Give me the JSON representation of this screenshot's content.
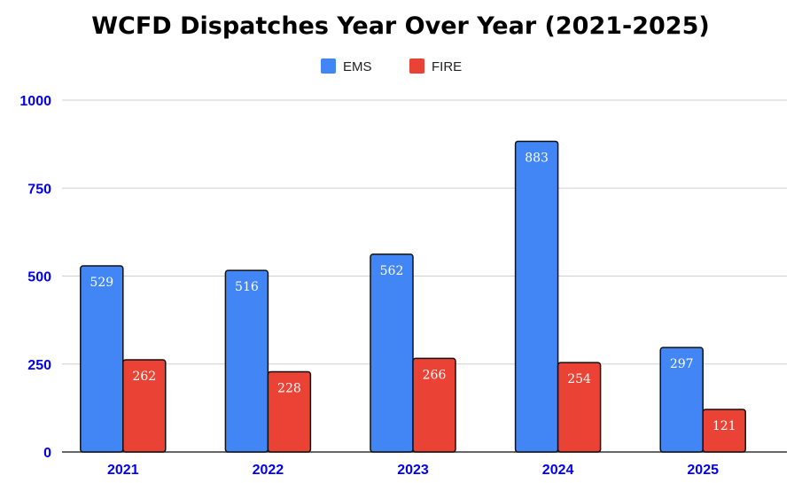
{
  "chart_data": {
    "type": "bar",
    "title": "WCFD Dispatches Year Over Year (2021-2025)",
    "categories": [
      "2021",
      "2022",
      "2023",
      "2024",
      "2025"
    ],
    "series": [
      {
        "name": "EMS",
        "color": "#4285f4",
        "values": [
          529,
          516,
          562,
          883,
          297
        ]
      },
      {
        "name": "FIRE",
        "color": "#ea4335",
        "values": [
          262,
          228,
          266,
          254,
          121
        ]
      }
    ],
    "ylim": [
      0,
      1000
    ],
    "yticks": [
      0,
      250,
      500,
      750,
      1000
    ],
    "xlabel": "",
    "ylabel": "",
    "grid": true,
    "legend": "top-center"
  }
}
